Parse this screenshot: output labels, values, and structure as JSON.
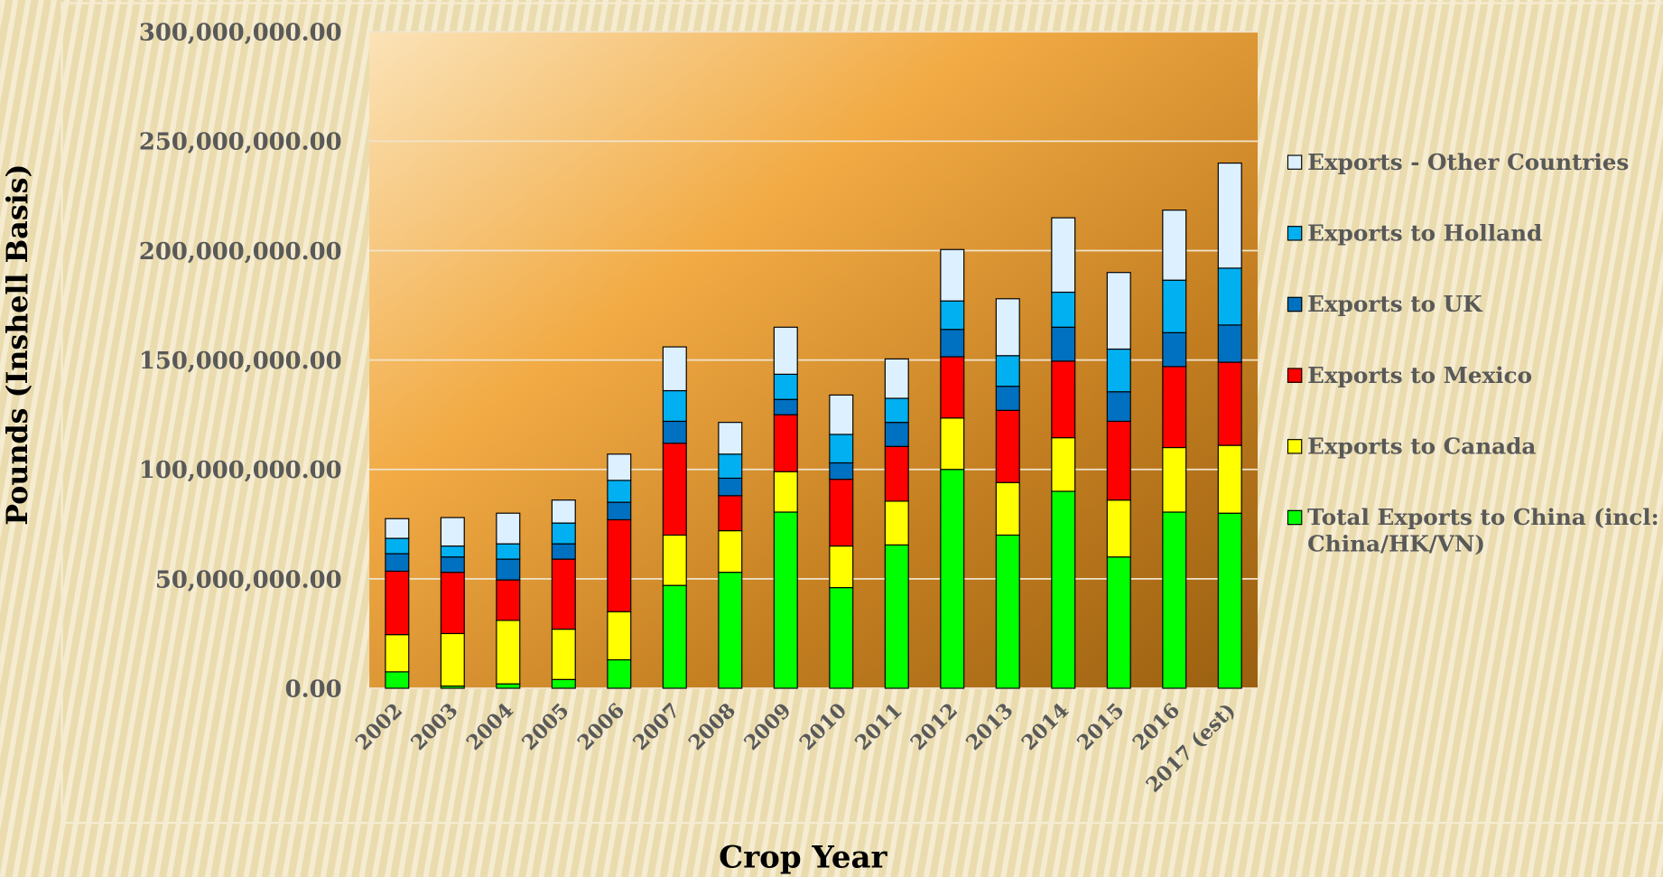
{
  "chart_data": {
    "type": "stacked_bar",
    "ylabel": "Pounds (Inshell Basis)",
    "xlabel": "Crop Year",
    "categories": [
      "2002",
      "2003",
      "2004",
      "2005",
      "2006",
      "2007",
      "2008",
      "2009",
      "2010",
      "2011",
      "2012",
      "2013",
      "2014",
      "2015",
      "2016",
      "2017 (est)"
    ],
    "series": [
      {
        "name": "Total Exports to China (incl: China/HK/VN)",
        "color": "#00ff00",
        "values": [
          7500000,
          1000000,
          2000000,
          4000000,
          13000000,
          47000000,
          53000000,
          80500000,
          46000000,
          65500000,
          100000000,
          70000000,
          90000000,
          60000000,
          80500000,
          80000000
        ]
      },
      {
        "name": "Exports to Canada",
        "color": "#ffff00",
        "values": [
          17000000,
          24000000,
          29000000,
          23000000,
          22000000,
          23000000,
          19000000,
          18500000,
          19000000,
          20000000,
          23500000,
          24000000,
          24500000,
          26000000,
          29500000,
          31000000
        ]
      },
      {
        "name": "Exports to Mexico",
        "color": "#ff0000",
        "values": [
          29000000,
          28000000,
          18500000,
          32000000,
          42000000,
          42000000,
          16000000,
          26000000,
          30500000,
          25000000,
          28000000,
          33000000,
          35000000,
          36000000,
          37000000,
          38000000
        ]
      },
      {
        "name": "Exports to UK",
        "color": "#0070c0",
        "values": [
          8000000,
          7000000,
          9500000,
          7000000,
          8000000,
          10000000,
          8000000,
          7000000,
          7500000,
          11000000,
          12500000,
          11000000,
          15500000,
          13500000,
          15500000,
          17000000
        ]
      },
      {
        "name": "Exports to Holland",
        "color": "#00b0f0",
        "values": [
          7000000,
          5000000,
          7000000,
          9500000,
          10000000,
          14000000,
          11000000,
          11500000,
          13000000,
          11000000,
          13000000,
          14000000,
          16000000,
          19500000,
          24000000,
          26000000
        ]
      },
      {
        "name": "Exports - Other Countries",
        "color": "#ddf0ff",
        "values": [
          9000000,
          13000000,
          14000000,
          10500000,
          12000000,
          20000000,
          14500000,
          21500000,
          18000000,
          18000000,
          23500000,
          26000000,
          34000000,
          35000000,
          32000000,
          48000000
        ]
      }
    ],
    "ylim": [
      0,
      300000000
    ],
    "yticks": [
      {
        "value": 0,
        "label": "0.00"
      },
      {
        "value": 50000000,
        "label": "50,000,000.00"
      },
      {
        "value": 100000000,
        "label": "100,000,000.00"
      },
      {
        "value": 150000000,
        "label": "150,000,000.00"
      },
      {
        "value": 200000000,
        "label": "200,000,000.00"
      },
      {
        "value": 250000000,
        "label": "250,000,000.00"
      },
      {
        "value": 300000000,
        "label": "300,000,000.00"
      }
    ],
    "grid": true
  }
}
